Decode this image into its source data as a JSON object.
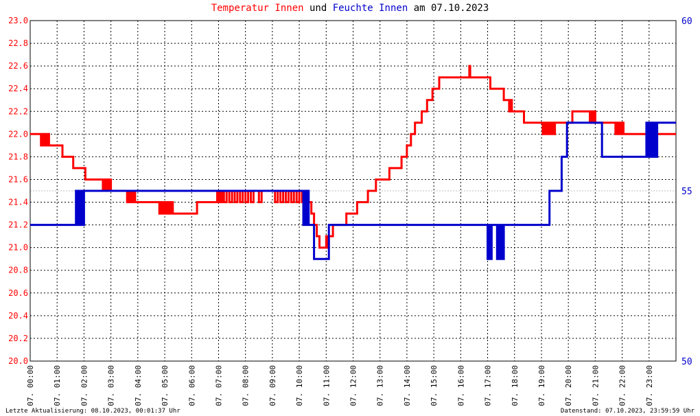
{
  "title": {
    "part1": "Temperatur Innen",
    "part2": " und ",
    "part3": "Feuchte Innen",
    "part4": " am 07.10.2023",
    "color1": "#ff0000",
    "color2": "#000000",
    "color3": "#0000cc",
    "color4": "#000000"
  },
  "footer": {
    "left": "Letzte Aktualisierung: 08.10.2023, 00:01:37 Uhr",
    "right": "Datenstand: 07.10.2023, 23:59:59 Uhr"
  },
  "chart_data": {
    "type": "line",
    "title": "Temperatur Innen und Feuchte Innen am 07.10.2023",
    "x_unit": "hours of 07.10.2023",
    "xlim": [
      0,
      24
    ],
    "x_tick_labels": [
      "07. 00:00",
      "07. 01:00",
      "07. 02:00",
      "07. 03:00",
      "07. 04:00",
      "07. 05:00",
      "07. 06:00",
      "07. 07:00",
      "07. 08:00",
      "07. 09:00",
      "07. 10:00",
      "07. 11:00",
      "07. 12:00",
      "07. 13:00",
      "07. 14:00",
      "07. 15:00",
      "07. 16:00",
      "07. 17:00",
      "07. 18:00",
      "07. 19:00",
      "07. 20:00",
      "07. 21:00",
      "07. 22:00",
      "07. 23:00"
    ],
    "y_left": {
      "lim": [
        20.0,
        23.0
      ],
      "ticks": [
        "20.0",
        "20.2",
        "20.4",
        "20.6",
        "20.8",
        "21.0",
        "21.2",
        "21.4",
        "21.6",
        "21.8",
        "22.0",
        "22.2",
        "22.4",
        "22.6",
        "22.8",
        "23.0"
      ],
      "color": "#ff0000"
    },
    "y_right": {
      "lim": [
        50,
        60
      ],
      "ticks": [
        "50",
        "55",
        "60"
      ],
      "color": "#0000cc"
    },
    "grid": true,
    "series": [
      {
        "name": "Temperatur Innen",
        "axis": "left",
        "color": "#ff0000",
        "points": [
          [
            0.0,
            22.0
          ],
          [
            0.35,
            22.0
          ],
          [
            0.4,
            21.9
          ],
          [
            0.45,
            22.0
          ],
          [
            0.5,
            21.9
          ],
          [
            0.55,
            22.0
          ],
          [
            0.6,
            21.9
          ],
          [
            0.65,
            22.0
          ],
          [
            0.7,
            21.9
          ],
          [
            0.75,
            21.9
          ],
          [
            1.15,
            21.9
          ],
          [
            1.2,
            21.8
          ],
          [
            1.55,
            21.8
          ],
          [
            1.6,
            21.7
          ],
          [
            2.0,
            21.7
          ],
          [
            2.05,
            21.6
          ],
          [
            2.65,
            21.6
          ],
          [
            2.7,
            21.5
          ],
          [
            2.75,
            21.6
          ],
          [
            2.8,
            21.5
          ],
          [
            2.85,
            21.6
          ],
          [
            2.9,
            21.5
          ],
          [
            2.95,
            21.6
          ],
          [
            3.0,
            21.5
          ],
          [
            3.55,
            21.5
          ],
          [
            3.6,
            21.4
          ],
          [
            3.65,
            21.5
          ],
          [
            3.7,
            21.4
          ],
          [
            3.75,
            21.5
          ],
          [
            3.8,
            21.4
          ],
          [
            3.85,
            21.5
          ],
          [
            3.9,
            21.4
          ],
          [
            4.75,
            21.4
          ],
          [
            4.8,
            21.3
          ],
          [
            4.85,
            21.4
          ],
          [
            4.9,
            21.3
          ],
          [
            4.95,
            21.4
          ],
          [
            5.0,
            21.3
          ],
          [
            5.05,
            21.4
          ],
          [
            5.1,
            21.3
          ],
          [
            5.15,
            21.4
          ],
          [
            5.2,
            21.3
          ],
          [
            5.25,
            21.4
          ],
          [
            5.3,
            21.3
          ],
          [
            6.15,
            21.3
          ],
          [
            6.2,
            21.4
          ],
          [
            6.9,
            21.4
          ],
          [
            6.95,
            21.5
          ],
          [
            7.0,
            21.4
          ],
          [
            7.05,
            21.5
          ],
          [
            7.1,
            21.4
          ],
          [
            7.15,
            21.5
          ],
          [
            7.2,
            21.4
          ],
          [
            7.3,
            21.5
          ],
          [
            7.4,
            21.4
          ],
          [
            7.5,
            21.5
          ],
          [
            7.6,
            21.4
          ],
          [
            7.7,
            21.5
          ],
          [
            7.8,
            21.4
          ],
          [
            7.9,
            21.5
          ],
          [
            8.0,
            21.4
          ],
          [
            8.1,
            21.5
          ],
          [
            8.2,
            21.4
          ],
          [
            8.3,
            21.5
          ],
          [
            8.4,
            21.5
          ],
          [
            8.5,
            21.4
          ],
          [
            8.6,
            21.5
          ],
          [
            9.0,
            21.5
          ],
          [
            9.1,
            21.4
          ],
          [
            9.2,
            21.5
          ],
          [
            9.3,
            21.4
          ],
          [
            9.4,
            21.5
          ],
          [
            9.5,
            21.4
          ],
          [
            9.6,
            21.5
          ],
          [
            9.7,
            21.4
          ],
          [
            9.8,
            21.5
          ],
          [
            9.9,
            21.4
          ],
          [
            10.0,
            21.5
          ],
          [
            10.1,
            21.4
          ],
          [
            10.2,
            21.5
          ],
          [
            10.3,
            21.4
          ],
          [
            10.4,
            21.4
          ],
          [
            10.45,
            21.3
          ],
          [
            10.55,
            21.2
          ],
          [
            10.65,
            21.1
          ],
          [
            10.75,
            21.0
          ],
          [
            10.95,
            21.0
          ],
          [
            11.0,
            21.1
          ],
          [
            11.05,
            21.0
          ],
          [
            11.1,
            21.1
          ],
          [
            11.2,
            21.1
          ],
          [
            11.25,
            21.2
          ],
          [
            11.7,
            21.2
          ],
          [
            11.75,
            21.3
          ],
          [
            12.1,
            21.3
          ],
          [
            12.15,
            21.4
          ],
          [
            12.5,
            21.4
          ],
          [
            12.55,
            21.5
          ],
          [
            12.8,
            21.5
          ],
          [
            12.85,
            21.6
          ],
          [
            13.3,
            21.6
          ],
          [
            13.35,
            21.7
          ],
          [
            13.75,
            21.7
          ],
          [
            13.8,
            21.8
          ],
          [
            13.95,
            21.8
          ],
          [
            14.0,
            21.9
          ],
          [
            14.1,
            21.9
          ],
          [
            14.15,
            22.0
          ],
          [
            14.25,
            22.0
          ],
          [
            14.3,
            22.1
          ],
          [
            14.5,
            22.1
          ],
          [
            14.55,
            22.2
          ],
          [
            14.7,
            22.2
          ],
          [
            14.75,
            22.3
          ],
          [
            14.9,
            22.3
          ],
          [
            14.95,
            22.4
          ],
          [
            15.15,
            22.4
          ],
          [
            15.2,
            22.5
          ],
          [
            16.05,
            22.5
          ],
          [
            16.1,
            22.5
          ],
          [
            16.3,
            22.5
          ],
          [
            16.32,
            22.6
          ],
          [
            16.35,
            22.5
          ],
          [
            17.05,
            22.5
          ],
          [
            17.1,
            22.4
          ],
          [
            17.55,
            22.4
          ],
          [
            17.6,
            22.3
          ],
          [
            17.75,
            22.3
          ],
          [
            17.8,
            22.2
          ],
          [
            17.85,
            22.3
          ],
          [
            17.9,
            22.2
          ],
          [
            18.3,
            22.2
          ],
          [
            18.35,
            22.1
          ],
          [
            19.0,
            22.1
          ],
          [
            19.05,
            22.0
          ],
          [
            19.1,
            22.1
          ],
          [
            19.15,
            22.0
          ],
          [
            19.2,
            22.1
          ],
          [
            19.25,
            22.0
          ],
          [
            19.3,
            22.1
          ],
          [
            19.35,
            22.0
          ],
          [
            19.4,
            22.1
          ],
          [
            19.45,
            22.0
          ],
          [
            19.5,
            22.1
          ],
          [
            20.1,
            22.1
          ],
          [
            20.15,
            22.2
          ],
          [
            20.75,
            22.2
          ],
          [
            20.8,
            22.1
          ],
          [
            20.85,
            22.2
          ],
          [
            20.9,
            22.1
          ],
          [
            20.95,
            22.2
          ],
          [
            21.0,
            22.1
          ],
          [
            21.7,
            22.1
          ],
          [
            21.75,
            22.0
          ],
          [
            21.8,
            22.1
          ],
          [
            21.85,
            22.0
          ],
          [
            21.9,
            22.1
          ],
          [
            21.95,
            22.0
          ],
          [
            22.0,
            22.1
          ],
          [
            22.05,
            22.0
          ],
          [
            24.0,
            22.0
          ]
        ]
      },
      {
        "name": "Feuchte Innen",
        "axis": "right",
        "color": "#0000cc",
        "points": [
          [
            0.0,
            54.0
          ],
          [
            1.65,
            54.0
          ],
          [
            1.7,
            55.0
          ],
          [
            1.75,
            54.0
          ],
          [
            1.8,
            55.0
          ],
          [
            1.85,
            54.0
          ],
          [
            1.9,
            55.0
          ],
          [
            1.95,
            54.0
          ],
          [
            2.0,
            55.0
          ],
          [
            6.6,
            55.0
          ],
          [
            10.1,
            55.0
          ],
          [
            10.15,
            54.0
          ],
          [
            10.2,
            55.0
          ],
          [
            10.25,
            54.0
          ],
          [
            10.3,
            55.0
          ],
          [
            10.35,
            54.0
          ],
          [
            10.5,
            54.0
          ],
          [
            10.55,
            53.0
          ],
          [
            11.05,
            53.0
          ],
          [
            11.1,
            54.0
          ],
          [
            16.95,
            54.0
          ],
          [
            17.0,
            53.0
          ],
          [
            17.05,
            54.0
          ],
          [
            17.1,
            53.0
          ],
          [
            17.15,
            54.0
          ],
          [
            17.35,
            53.0
          ],
          [
            17.4,
            54.0
          ],
          [
            17.45,
            53.0
          ],
          [
            17.5,
            54.0
          ],
          [
            17.55,
            53.0
          ],
          [
            17.6,
            54.0
          ],
          [
            19.25,
            54.0
          ],
          [
            19.3,
            55.0
          ],
          [
            19.7,
            55.0
          ],
          [
            19.75,
            56.0
          ],
          [
            19.9,
            56.0
          ],
          [
            19.95,
            57.0
          ],
          [
            21.2,
            57.0
          ],
          [
            21.25,
            56.0
          ],
          [
            22.85,
            56.0
          ],
          [
            22.9,
            57.0
          ],
          [
            22.95,
            56.0
          ],
          [
            23.0,
            57.0
          ],
          [
            23.05,
            56.0
          ],
          [
            23.1,
            57.0
          ],
          [
            23.15,
            56.0
          ],
          [
            23.2,
            57.0
          ],
          [
            23.25,
            56.0
          ],
          [
            23.3,
            57.0
          ],
          [
            24.0,
            57.0
          ]
        ]
      }
    ]
  }
}
